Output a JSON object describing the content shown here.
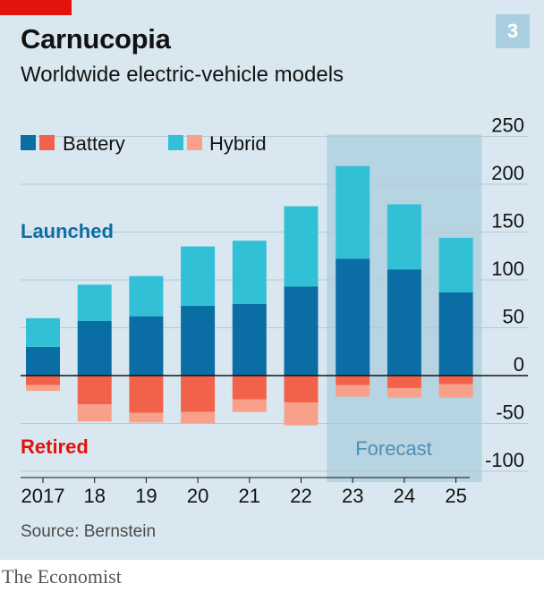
{
  "header": {
    "title": "Carnucopia",
    "subtitle": "Worldwide electric-vehicle models",
    "chart_number": "3"
  },
  "footer": {
    "source": "Source: Bernstein",
    "brand": "The Economist"
  },
  "colors": {
    "background": "#d9e8f0",
    "battery_launched": "#0a6da4",
    "hybrid_launched": "#32c0d6",
    "battery_retired": "#f2624b",
    "hybrid_retired": "#f8a08a",
    "forecast_shade": "#b7d4e2",
    "launched_text": "#0a6da4",
    "retired_text": "#e3120b"
  },
  "chart_data": {
    "type": "bar",
    "stacked": true,
    "categories": [
      "2017",
      "18",
      "19",
      "20",
      "21",
      "22",
      "23",
      "24",
      "25"
    ],
    "series": [
      {
        "name": "Battery",
        "group": "Launched",
        "values": [
          30,
          57,
          62,
          73,
          75,
          93,
          122,
          111,
          87
        ]
      },
      {
        "name": "Hybrid",
        "group": "Launched",
        "values": [
          30,
          38,
          42,
          62,
          66,
          84,
          97,
          68,
          57
        ]
      },
      {
        "name": "Battery",
        "group": "Retired",
        "values": [
          -10,
          -30,
          -39,
          -38,
          -25,
          -28,
          -10,
          -13,
          -9
        ]
      },
      {
        "name": "Hybrid",
        "group": "Retired",
        "values": [
          -6,
          -18,
          -10,
          -12,
          -13,
          -24,
          -12,
          -10,
          -14
        ]
      }
    ],
    "ylim": [
      -100,
      250
    ],
    "yticks": [
      -100,
      -50,
      0,
      50,
      100,
      150,
      200,
      250
    ],
    "y_axis_side": "right",
    "grid": true,
    "legend": {
      "placement": "top-left",
      "entries": [
        "Battery",
        "Hybrid"
      ]
    },
    "annotations": {
      "launched": "Launched",
      "retired": "Retired",
      "forecast": "Forecast"
    },
    "forecast_categories": [
      "23",
      "24",
      "25"
    ]
  }
}
